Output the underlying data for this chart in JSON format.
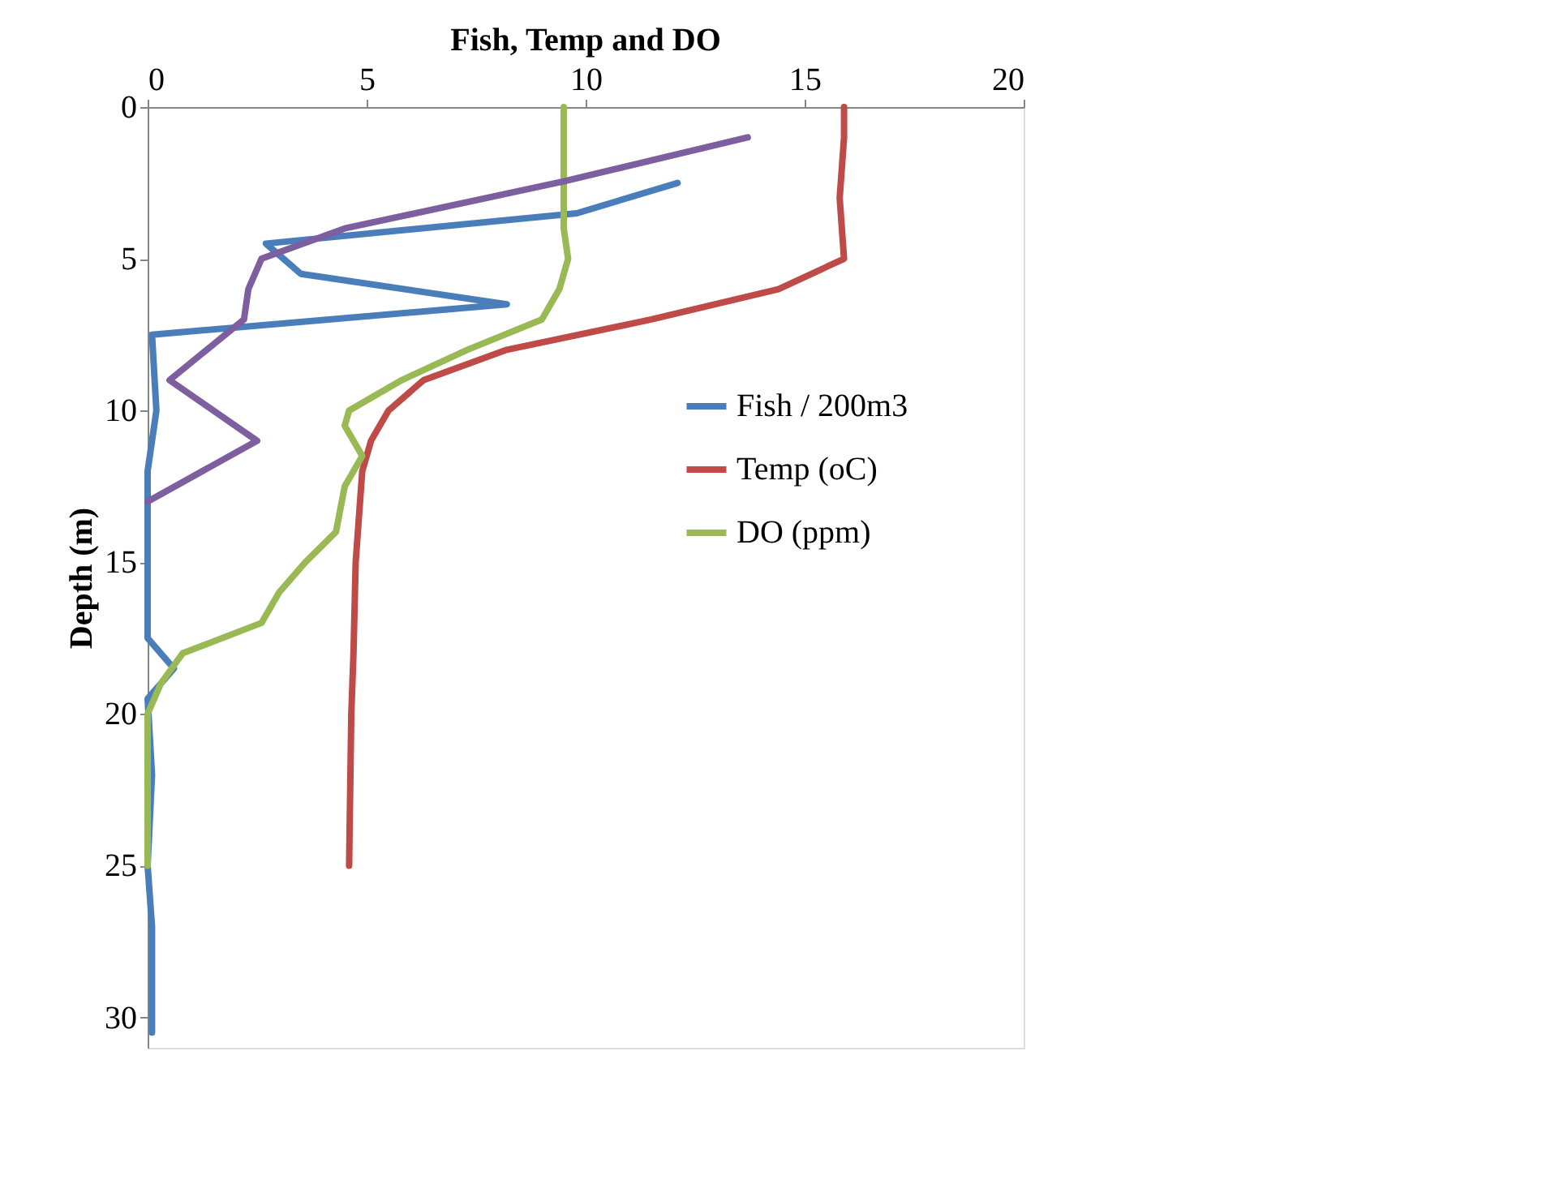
{
  "chart_data": {
    "type": "line",
    "title": "Fish, Temp and DO",
    "ylabel": "Depth (m)",
    "xlim": [
      0,
      20
    ],
    "xticks": [
      0,
      5,
      10,
      15,
      20
    ],
    "ylim": [
      31,
      0
    ],
    "yticks": [
      0,
      5,
      10,
      15,
      20,
      25,
      30
    ],
    "grid": false,
    "legend": "right",
    "marker": "none",
    "line_style": "solid",
    "series": [
      {
        "name": "Fish / 200m3",
        "color": "#4a7ebb",
        "x": [
          12.1,
          9.8,
          2.7,
          3.5,
          8.2,
          0.1,
          0.2,
          0.0,
          0.0,
          0.0,
          0.6,
          0.0,
          0.1,
          0.0,
          0.1,
          0.1
        ],
        "values": [
          2.5,
          3.5,
          4.5,
          5.5,
          6.5,
          7.5,
          10,
          12,
          15,
          17.5,
          18.5,
          19.5,
          22,
          25,
          27,
          30.5
        ]
      },
      {
        "name": "Temp (oC)",
        "color": "#be4b48",
        "x": [
          15.9,
          15.9,
          15.85,
          15.8,
          15.85,
          15.9,
          14.4,
          11.5,
          8.2,
          6.3,
          5.5,
          5.1,
          4.9,
          4.75,
          4.7,
          4.65,
          4.6
        ],
        "values": [
          0,
          1,
          2,
          3,
          4,
          5,
          6,
          7,
          8,
          9,
          10,
          11,
          12,
          15,
          18,
          20,
          25
        ]
      },
      {
        "name": "DO (ppm)",
        "color": "#98b954",
        "x": [
          9.5,
          9.5,
          9.5,
          9.5,
          9.5,
          9.6,
          9.4,
          9.0,
          7.3,
          5.8,
          4.6,
          4.5,
          4.9,
          4.5,
          4.3,
          3.6,
          3.0,
          2.6,
          0.8,
          0.3,
          0.0,
          0.0
        ],
        "values": [
          0,
          1,
          2,
          3,
          4,
          5,
          6,
          7,
          8,
          9,
          10,
          10.5,
          11.5,
          12.5,
          14,
          15,
          16,
          17,
          18,
          19,
          20,
          25
        ]
      },
      {
        "color": "#7d5fa0",
        "x": [
          13.7,
          9.5,
          4.5,
          2.6,
          2.3,
          2.2,
          0.5,
          2.5,
          0.0
        ],
        "values": [
          1,
          2.45,
          4,
          5,
          6,
          7,
          9,
          11,
          13
        ]
      }
    ]
  }
}
